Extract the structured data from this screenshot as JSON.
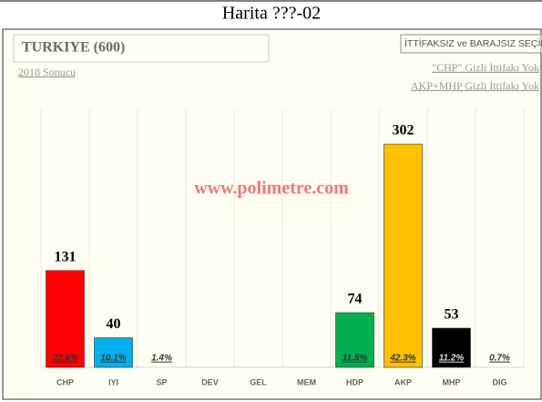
{
  "chart_data": {
    "type": "bar",
    "title": "Harita ???-02",
    "subtitle": "TURKIYE (600)",
    "note": "2018 Sonucu",
    "scenario": "İTTİFAKSIZ ve BARAJSIZ SEÇİM",
    "scenario_notes": [
      "\"CHP\" Gizli İttifakı Yok",
      "AKP+MHP Gizli İttifakı Yok"
    ],
    "watermark": "www.polimetre.com",
    "categories": [
      "CHP",
      "IYI",
      "SP",
      "DEV",
      "GEL",
      "MEM",
      "HDP",
      "AKP",
      "MHP",
      "DIG"
    ],
    "values": [
      131,
      40,
      0,
      0,
      0,
      0,
      74,
      302,
      53,
      0
    ],
    "percent_labels": [
      "22.8%",
      "10.1%",
      "1.4%",
      null,
      null,
      null,
      "11.5%",
      "42.3%",
      "11.2%",
      "0.7%"
    ],
    "colors": [
      "#ff0000",
      "#00b0f0",
      "#7f7f7f",
      "#7f7f7f",
      "#7f7f7f",
      "#7f7f7f",
      "#00b050",
      "#ffc000",
      "#000000",
      "#7f7f7f"
    ]
  }
}
